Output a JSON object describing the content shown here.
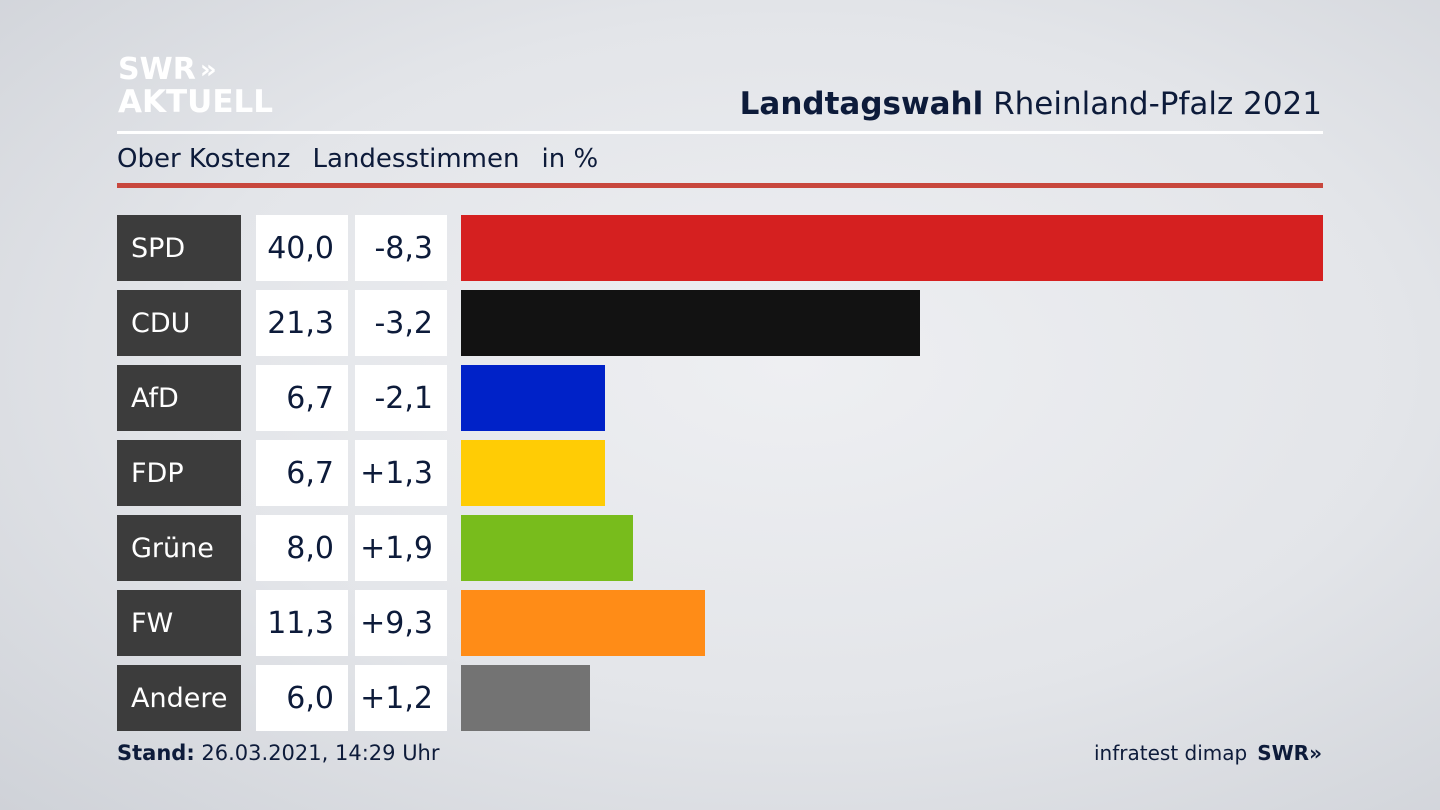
{
  "logo": {
    "line1": "SWR",
    "chevrons": "»",
    "line2": "AKTUELL"
  },
  "title": {
    "bold": "Landtagswahl",
    "rest": "Rheinland-Pfalz 2021"
  },
  "subtitle": {
    "region": "Ober Kostenz",
    "metric": "Landesstimmen",
    "unit": "in %"
  },
  "colors": {
    "accent_rule": "#c8473d",
    "label_bg": "#3c3c3c",
    "text": "#0d1b3a"
  },
  "chart_data": {
    "type": "bar",
    "orientation": "horizontal",
    "categories": [
      "SPD",
      "CDU",
      "AfD",
      "FDP",
      "Grüne",
      "FW",
      "Andere"
    ],
    "values": [
      40.0,
      21.3,
      6.7,
      6.7,
      8.0,
      11.3,
      6.0
    ],
    "value_labels": [
      "40,0",
      "21,3",
      "6,7",
      "6,7",
      "8,0",
      "11,3",
      "6,0"
    ],
    "changes": [
      -8.3,
      -3.2,
      -2.1,
      1.3,
      1.9,
      9.3,
      1.2
    ],
    "change_labels": [
      "-8,3",
      "-3,2",
      "-2,1",
      "+1,3",
      "+1,9",
      "+9,3",
      "+1,2"
    ],
    "colors": [
      "#d52020",
      "#121212",
      "#0022c8",
      "#ffcc05",
      "#78bc1c",
      "#ff8c17",
      "#737373"
    ],
    "xlim": [
      0,
      40
    ],
    "grid": false
  },
  "footer": {
    "stand_label": "Stand:",
    "stand_value": "26.03.2021, 14:29 Uhr",
    "source": "infratest dimap",
    "brand": "SWR",
    "brand_chevrons": "»"
  }
}
